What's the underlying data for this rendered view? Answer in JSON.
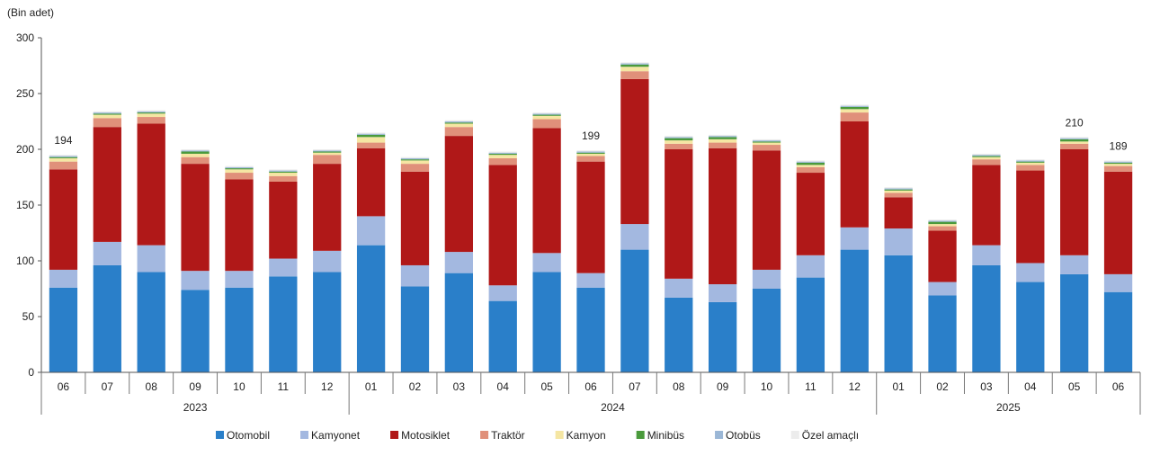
{
  "chart_data": {
    "type": "bar",
    "stacked": true,
    "unit_label": "(Bin adet)",
    "ylim": [
      0,
      300
    ],
    "yticks": [
      0,
      50,
      100,
      150,
      200,
      250,
      300
    ],
    "grid": false,
    "legend_position": "bottom",
    "categories": [
      "06",
      "07",
      "08",
      "09",
      "10",
      "11",
      "12",
      "01",
      "02",
      "03",
      "04",
      "05",
      "06",
      "07",
      "08",
      "09",
      "10",
      "11",
      "12",
      "01",
      "02",
      "03",
      "04",
      "05",
      "06"
    ],
    "year_groups": [
      {
        "label": "2023",
        "start": 0,
        "end": 6
      },
      {
        "label": "2024",
        "start": 7,
        "end": 18
      },
      {
        "label": "2025",
        "start": 19,
        "end": 24
      }
    ],
    "series": [
      {
        "name": "Otomobil",
        "color": "#2a7fc9",
        "values": [
          76,
          96,
          90,
          74,
          76,
          86,
          90,
          114,
          77,
          89,
          64,
          90,
          76,
          110,
          67,
          63,
          75,
          85,
          110,
          105,
          69,
          96,
          81,
          88,
          72
        ]
      },
      {
        "name": "Kamyonet",
        "color": "#a3b8e0",
        "values": [
          16,
          21,
          24,
          17,
          15,
          16,
          19,
          26,
          19,
          19,
          14,
          17,
          13,
          23,
          17,
          16,
          17,
          20,
          20,
          24,
          12,
          18,
          17,
          17,
          16
        ]
      },
      {
        "name": "Motosiklet",
        "color": "#b01818",
        "values": [
          90,
          103,
          109,
          96,
          82,
          69,
          78,
          61,
          84,
          104,
          108,
          112,
          100,
          130,
          116,
          122,
          107,
          74,
          95,
          28,
          46,
          72,
          83,
          95,
          92
        ]
      },
      {
        "name": "Traktör",
        "color": "#e0907a",
        "values": [
          7,
          8,
          6,
          6,
          6,
          5,
          8,
          5,
          7,
          8,
          6,
          8,
          5,
          7,
          5,
          5,
          5,
          5,
          8,
          4,
          4,
          5,
          5,
          5,
          5
        ]
      },
      {
        "name": "Kamyon",
        "color": "#f5e6a3",
        "values": [
          3,
          3,
          3,
          3,
          3,
          3,
          2,
          5,
          3,
          3,
          3,
          3,
          2,
          4,
          3,
          3,
          2,
          2,
          3,
          2,
          2,
          2,
          2,
          2,
          2
        ]
      },
      {
        "name": "Minibüs",
        "color": "#4a9a3c",
        "values": [
          1,
          1,
          1,
          2,
          1,
          1,
          1,
          2,
          1,
          1,
          1,
          1,
          1,
          2,
          2,
          2,
          1,
          2,
          2,
          1,
          2,
          1,
          1,
          2,
          1
        ]
      },
      {
        "name": "Otobüs",
        "color": "#9bb7d6",
        "values": [
          1,
          1,
          1,
          1,
          1,
          1,
          1,
          1,
          1,
          1,
          1,
          1,
          1,
          1,
          1,
          1,
          1,
          1,
          1,
          1,
          1,
          1,
          1,
          1,
          1
        ]
      },
      {
        "name": "Özel amaçlı",
        "color": "#ececec",
        "values": [
          1,
          1,
          1,
          1,
          1,
          1,
          1,
          1,
          1,
          1,
          1,
          1,
          1,
          1,
          1,
          1,
          1,
          1,
          1,
          1,
          1,
          1,
          1,
          1,
          1
        ]
      }
    ],
    "data_labels": [
      {
        "index": 0,
        "text": "194"
      },
      {
        "index": 12,
        "text": "199"
      },
      {
        "index": 23,
        "text": "210"
      },
      {
        "index": 24,
        "text": "189"
      }
    ]
  }
}
